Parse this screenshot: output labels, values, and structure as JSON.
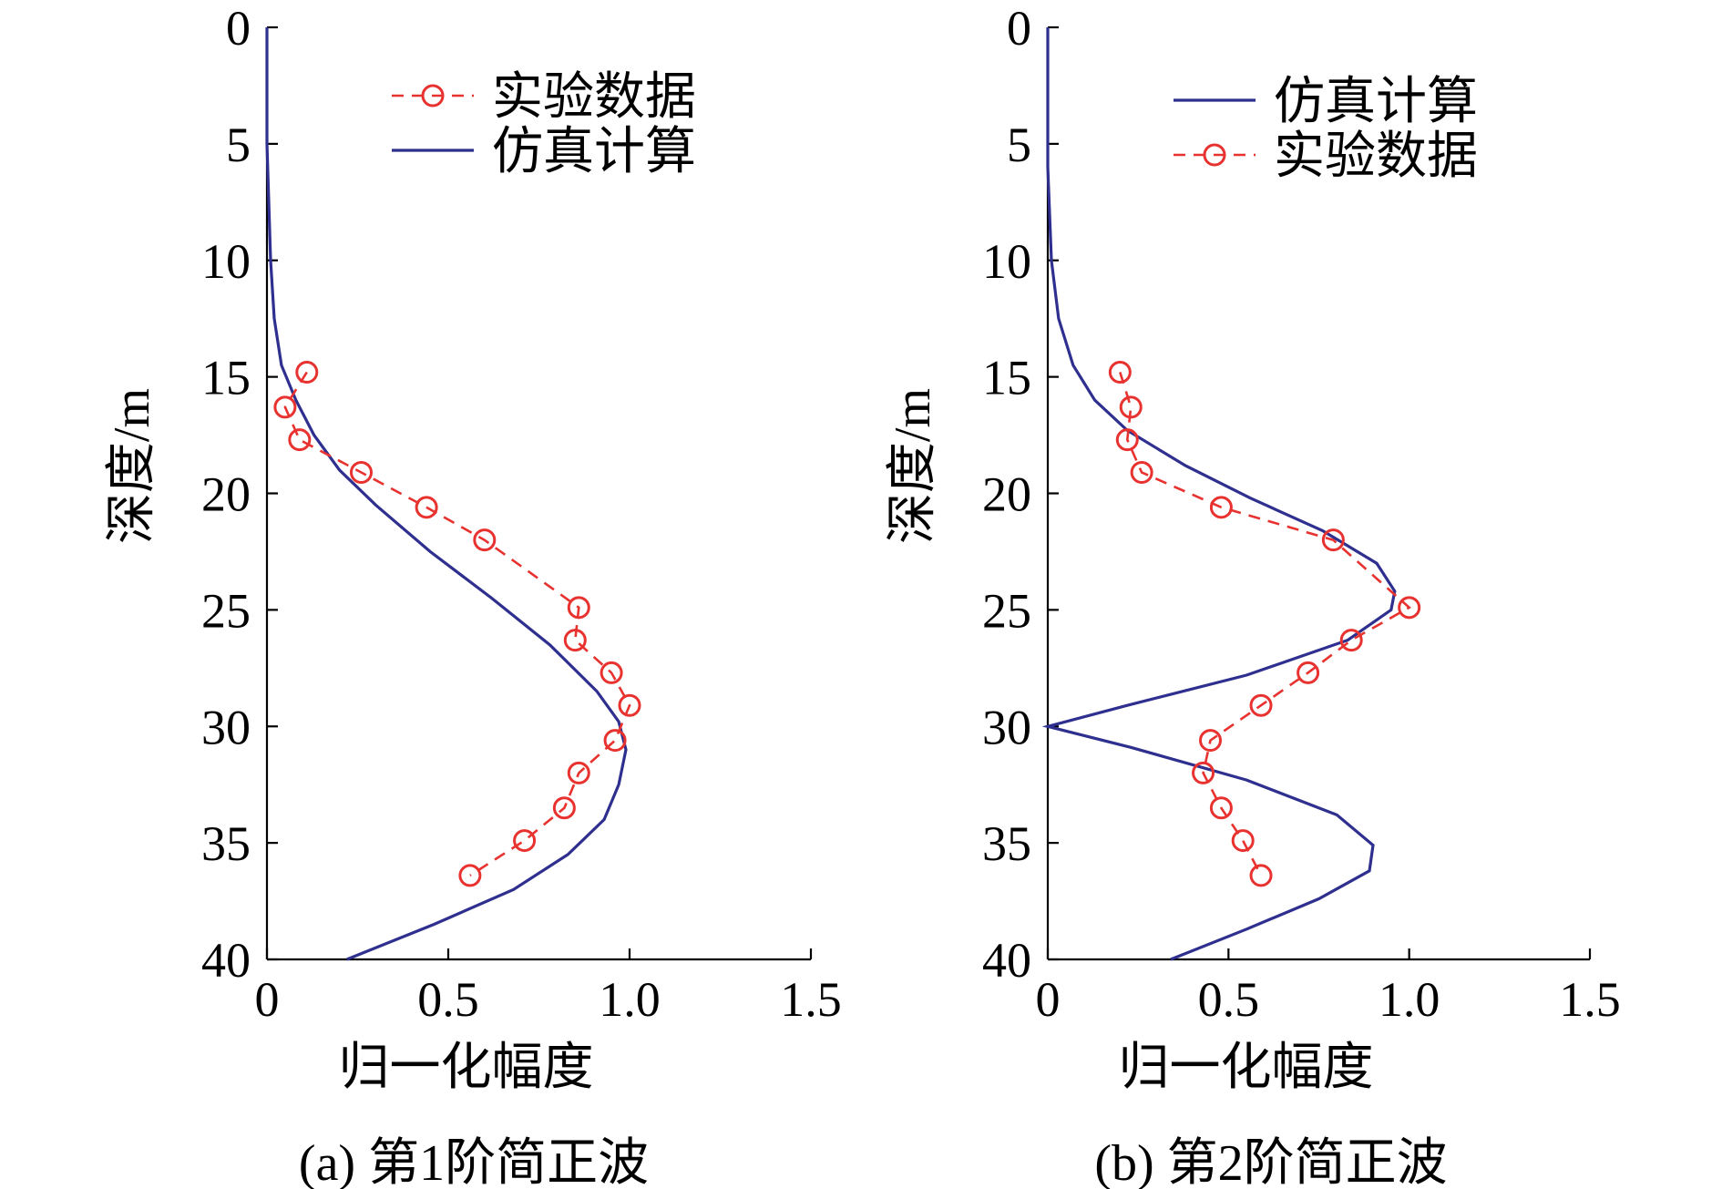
{
  "legend_labels": {
    "experiment": "实验数据",
    "simulation": "仿真计算"
  },
  "colors": {
    "simulation": "#2e2f8f",
    "experiment": "#e8322f"
  },
  "chart_data": [
    {
      "type": "line",
      "caption": "(a) 第1阶简正波",
      "xlabel": "归一化幅度",
      "ylabel": "深度/m",
      "xlim": [
        0,
        1.5
      ],
      "ylim": [
        0,
        40
      ],
      "y_inverted": true,
      "xticks": [
        "0",
        "0.5",
        "1.0",
        "1.5"
      ],
      "yticks": [
        "0",
        "5",
        "10",
        "15",
        "20",
        "25",
        "30",
        "35",
        "40"
      ],
      "legend_position": "top-right",
      "legend_order": [
        "experiment",
        "simulation"
      ],
      "series": [
        {
          "key": "simulation",
          "name": "仿真计算",
          "style": "solid",
          "x": [
            0,
            0,
            0.01,
            0.02,
            0.04,
            0.08,
            0.13,
            0.2,
            0.3,
            0.45,
            0.62,
            0.78,
            0.91,
            0.97,
            0.99,
            0.97,
            0.93,
            0.83,
            0.68,
            0.46,
            0.22
          ],
          "y": [
            0,
            5,
            10,
            12.5,
            14.5,
            16,
            17.5,
            19,
            20.5,
            22.5,
            24.5,
            26.5,
            28.5,
            29.8,
            31,
            32.5,
            34,
            35.5,
            37,
            38.5,
            40
          ]
        },
        {
          "key": "experiment",
          "name": "实验数据",
          "style": "dashed-circle",
          "x": [
            0.11,
            0.05,
            0.09,
            0.26,
            0.44,
            0.6,
            0.86,
            0.85,
            0.95,
            1.0,
            0.96,
            0.86,
            0.82,
            0.71,
            0.56
          ],
          "y": [
            14.8,
            16.3,
            17.7,
            19.1,
            20.6,
            22.0,
            24.9,
            26.3,
            27.7,
            29.1,
            30.6,
            32.0,
            33.5,
            34.9,
            36.4
          ]
        }
      ]
    },
    {
      "type": "line",
      "caption": "(b) 第2阶简正波",
      "xlabel": "归一化幅度",
      "ylabel": "深度/m",
      "xlim": [
        0,
        1.5
      ],
      "ylim": [
        0,
        40
      ],
      "y_inverted": true,
      "xticks": [
        "0",
        "0.5",
        "1.0",
        "1.5"
      ],
      "yticks": [
        "0",
        "5",
        "10",
        "15",
        "20",
        "25",
        "30",
        "35",
        "40"
      ],
      "legend_position": "top-right",
      "legend_order": [
        "simulation",
        "experiment"
      ],
      "series": [
        {
          "key": "simulation",
          "name": "仿真计算",
          "style": "solid",
          "x": [
            0,
            0,
            0.01,
            0.03,
            0.07,
            0.13,
            0.22,
            0.38,
            0.56,
            0.76,
            0.91,
            0.96,
            0.95,
            0.83,
            0.55,
            0.22,
            0,
            0.23,
            0.55,
            0.8,
            0.9,
            0.89,
            0.75,
            0.55,
            0.34
          ],
          "y": [
            0,
            6,
            10,
            12.5,
            14.5,
            16,
            17.3,
            18.8,
            20.2,
            21.6,
            23,
            24.2,
            25,
            26.3,
            27.8,
            29.1,
            30,
            30.9,
            32.3,
            33.8,
            35.1,
            36.2,
            37.4,
            38.7,
            40
          ]
        },
        {
          "key": "experiment",
          "name": "实验数据",
          "style": "dashed-circle",
          "x": [
            0.2,
            0.23,
            0.22,
            0.26,
            0.48,
            0.79,
            1.0,
            0.84,
            0.72,
            0.59,
            0.45,
            0.43,
            0.48,
            0.54,
            0.59
          ],
          "y": [
            14.8,
            16.3,
            17.7,
            19.1,
            20.6,
            22.0,
            24.9,
            26.3,
            27.7,
            29.1,
            30.6,
            32.0,
            33.5,
            34.9,
            36.4
          ]
        }
      ]
    }
  ]
}
